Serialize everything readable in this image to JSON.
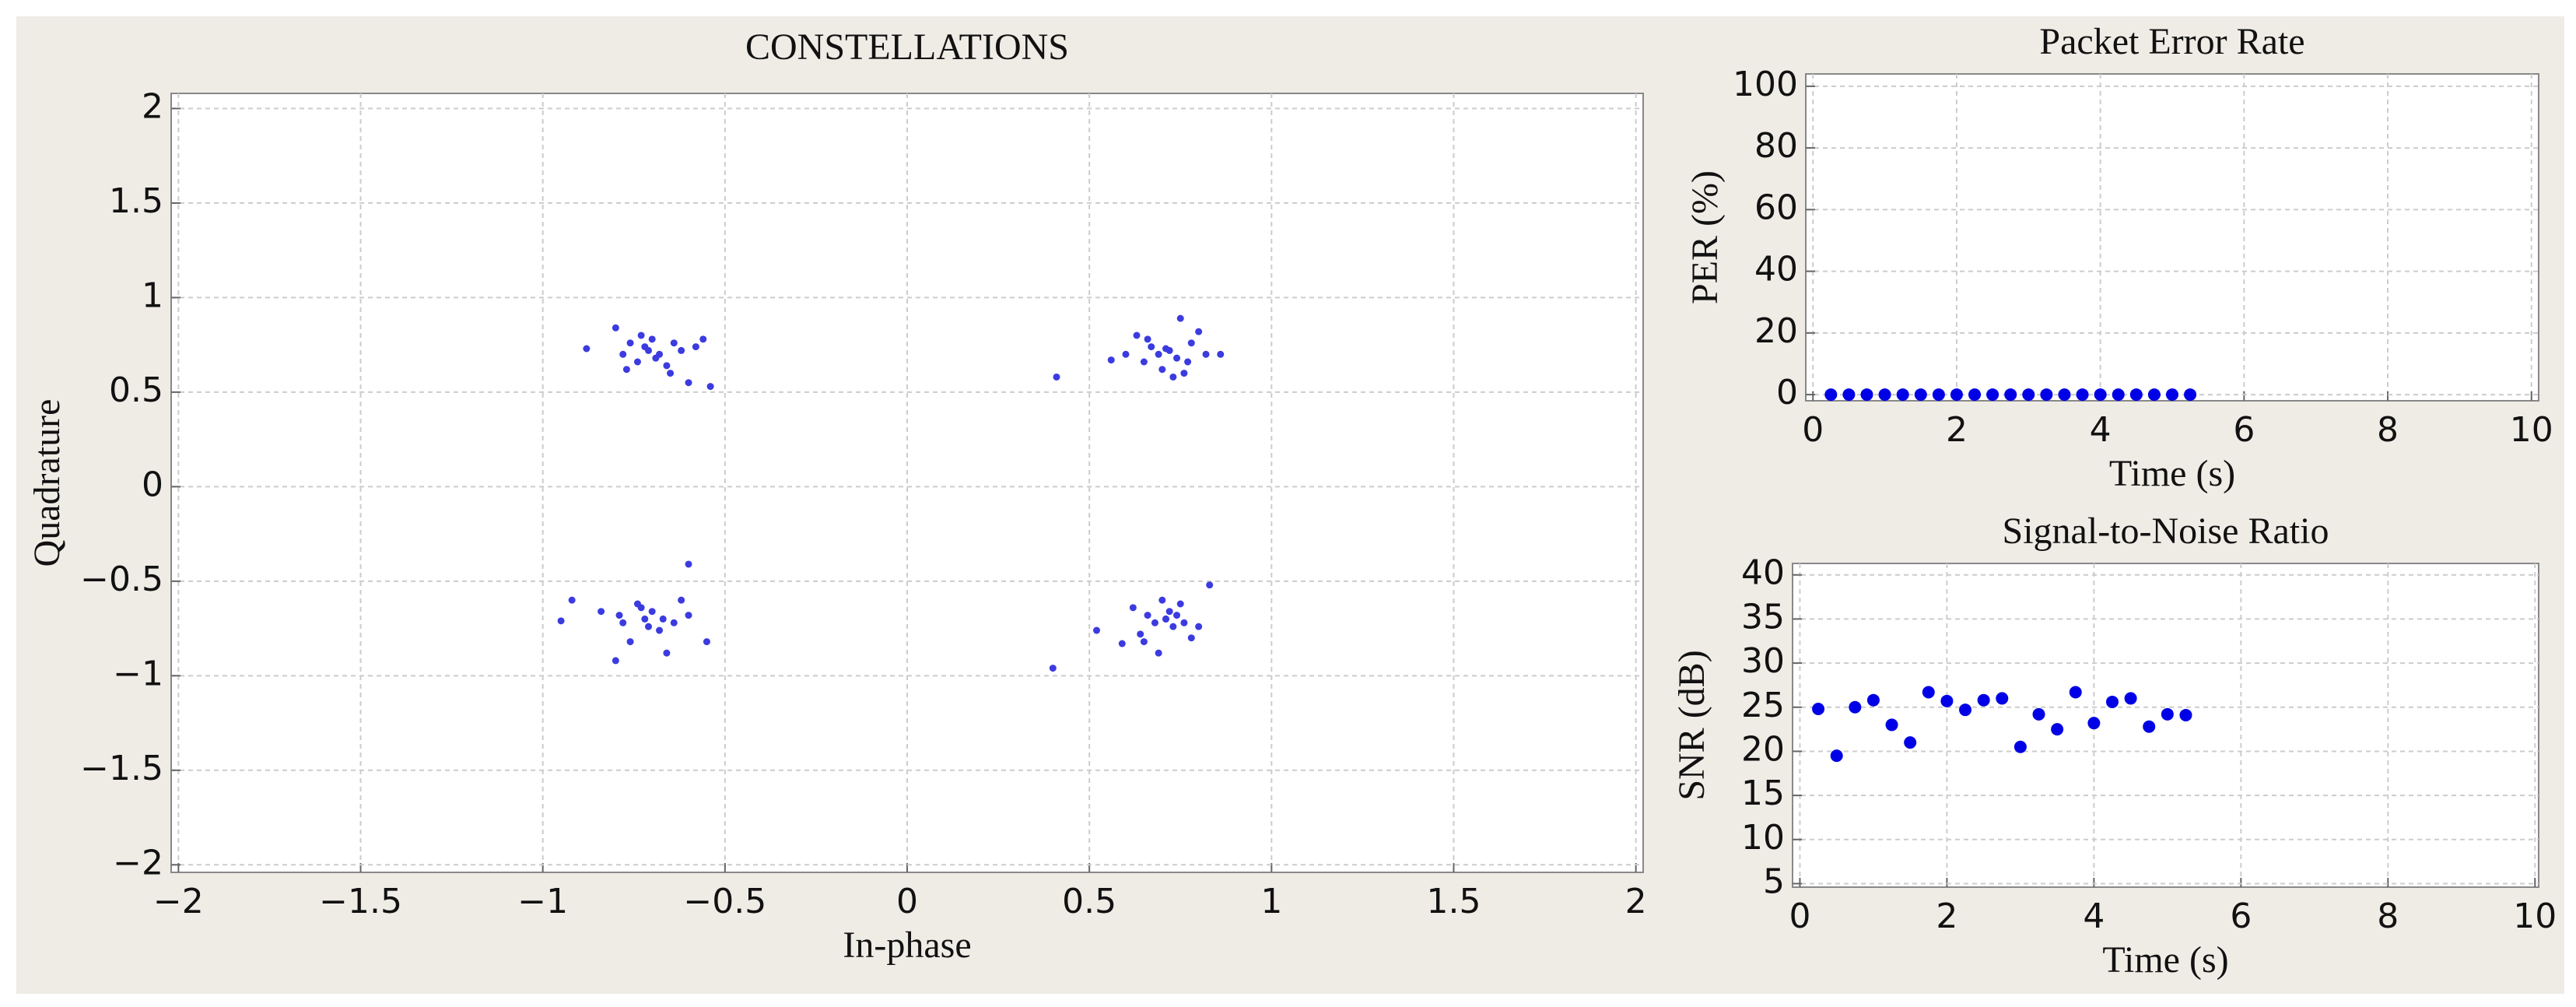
{
  "chart_data": [
    {
      "type": "scatter",
      "title": "CONSTELLATIONS",
      "xlabel": "In-phase",
      "ylabel": "Quadrature",
      "color": "#3b3be0",
      "grid": true,
      "xlim": [
        -2.02,
        2.02
      ],
      "ylim": [
        -2.04,
        2.08
      ],
      "xticks": [
        {
          "value": -2,
          "label": "−2"
        },
        {
          "value": -1.5,
          "label": "−1.5"
        },
        {
          "value": -1,
          "label": "−1"
        },
        {
          "value": -0.5,
          "label": "−0.5"
        },
        0,
        0.5,
        1,
        1.5,
        2
      ],
      "yticks": [
        {
          "value": -2,
          "label": "−2"
        },
        {
          "value": -1.5,
          "label": "−1.5"
        },
        {
          "value": -1,
          "label": "−1"
        },
        {
          "value": -0.5,
          "label": "−0.5"
        },
        0,
        0.5,
        1,
        1.5,
        2
      ],
      "x": [
        -0.88,
        -0.8,
        -0.78,
        -0.76,
        -0.74,
        -0.72,
        -0.7,
        -0.68,
        -0.66,
        -0.64,
        -0.62,
        -0.6,
        -0.58,
        -0.56,
        -0.54,
        -0.73,
        -0.69,
        -0.65,
        -0.71,
        -0.77,
        0.41,
        0.56,
        0.6,
        0.63,
        0.65,
        0.67,
        0.69,
        0.7,
        0.72,
        0.74,
        0.75,
        0.76,
        0.78,
        0.8,
        0.82,
        0.86,
        0.66,
        0.71,
        0.73,
        0.77,
        -0.95,
        -0.92,
        -0.84,
        -0.8,
        -0.78,
        -0.76,
        -0.74,
        -0.72,
        -0.7,
        -0.68,
        -0.66,
        -0.64,
        -0.62,
        -0.6,
        -0.55,
        -0.6,
        -0.71,
        -0.73,
        -0.67,
        -0.79,
        0.4,
        0.52,
        0.59,
        0.62,
        0.64,
        0.66,
        0.68,
        0.7,
        0.71,
        0.72,
        0.73,
        0.74,
        0.75,
        0.76,
        0.78,
        0.8,
        0.83,
        0.69,
        0.71,
        0.65
      ],
      "values": [
        0.73,
        0.84,
        0.7,
        0.76,
        0.66,
        0.74,
        0.78,
        0.7,
        0.64,
        0.76,
        0.72,
        0.55,
        0.74,
        0.78,
        0.53,
        0.8,
        0.68,
        0.6,
        0.72,
        0.62,
        0.58,
        0.67,
        0.7,
        0.8,
        0.66,
        0.74,
        0.7,
        0.62,
        0.72,
        0.68,
        0.89,
        0.6,
        0.76,
        0.82,
        0.7,
        0.7,
        0.78,
        0.73,
        0.58,
        0.66,
        -0.71,
        -0.6,
        -0.66,
        -0.92,
        -0.72,
        -0.82,
        -0.62,
        -0.7,
        -0.66,
        -0.76,
        -0.88,
        -0.72,
        -0.6,
        -0.41,
        -0.82,
        -0.68,
        -0.74,
        -0.64,
        -0.7,
        -0.68,
        -0.96,
        -0.76,
        -0.83,
        -0.64,
        -0.78,
        -0.68,
        -0.72,
        -0.6,
        -0.7,
        -0.66,
        -0.74,
        -0.68,
        -0.62,
        -0.72,
        -0.8,
        -0.74,
        -0.52,
        -0.88,
        -0.7,
        -0.82
      ]
    },
    {
      "type": "scatter",
      "title": "Packet Error Rate",
      "xlabel": "Time (s)",
      "ylabel": "PER (%)",
      "color": "#0000e6",
      "grid": true,
      "xlim": [
        -0.1,
        10.1
      ],
      "ylim": [
        -2,
        104
      ],
      "xticks": [
        0,
        2,
        4,
        6,
        8,
        10
      ],
      "yticks": [
        0,
        20,
        40,
        60,
        80,
        100
      ],
      "x": [
        0.25,
        0.5,
        0.75,
        1,
        1.25,
        1.5,
        1.75,
        2,
        2.25,
        2.5,
        2.75,
        3,
        3.25,
        3.5,
        3.75,
        4,
        4.25,
        4.5,
        4.75,
        5,
        5.25
      ],
      "values": [
        0,
        0,
        0,
        0,
        0,
        0,
        0,
        0,
        0,
        0,
        0,
        0,
        0,
        0,
        0,
        0,
        0,
        0,
        0,
        0,
        0
      ]
    },
    {
      "type": "scatter",
      "title": "Signal-to-Noise Ratio",
      "xlabel": "Time (s)",
      "ylabel": "SNR (dB)",
      "color": "#0000e6",
      "grid": true,
      "xlim": [
        -0.1,
        10.05
      ],
      "ylim": [
        4.6,
        41.3
      ],
      "xticks": [
        0,
        2,
        4,
        6,
        8,
        10
      ],
      "yticks": [
        5,
        10,
        15,
        20,
        25,
        30,
        35,
        40
      ],
      "x": [
        0.25,
        0.5,
        0.75,
        1,
        1.25,
        1.5,
        1.75,
        2,
        2.25,
        2.5,
        2.75,
        3,
        3.25,
        3.5,
        3.75,
        4,
        4.25,
        4.5,
        4.75,
        5,
        5.25
      ],
      "values": [
        24.8,
        19.5,
        25,
        25.8,
        23,
        21,
        26.7,
        25.7,
        24.7,
        25.8,
        26,
        20.5,
        24.2,
        22.5,
        26.7,
        23.2,
        25.6,
        26,
        22.8,
        24.2,
        24.1
      ]
    }
  ]
}
